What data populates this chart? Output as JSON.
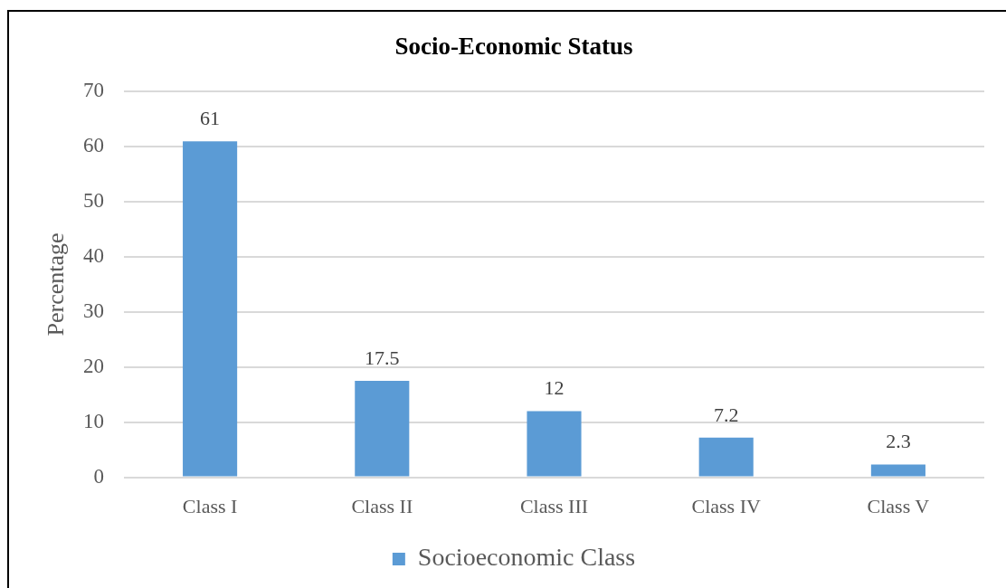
{
  "chart_data": {
    "type": "bar",
    "title": "Socio-Economic Status",
    "ylabel": "Percentage",
    "categories": [
      "Class I",
      "Class II",
      "Class III",
      "Class IV",
      "Class V"
    ],
    "series": [
      {
        "name": "Socioeconomic Class",
        "color": "#5b9bd5",
        "values": [
          61,
          17.5,
          12,
          7.2,
          2.3
        ]
      }
    ],
    "ylim": [
      0,
      70
    ],
    "yticks": [
      0,
      10,
      20,
      30,
      40,
      50,
      60,
      70
    ],
    "grid": "y",
    "legend": "bottom",
    "data_labels": true
  }
}
